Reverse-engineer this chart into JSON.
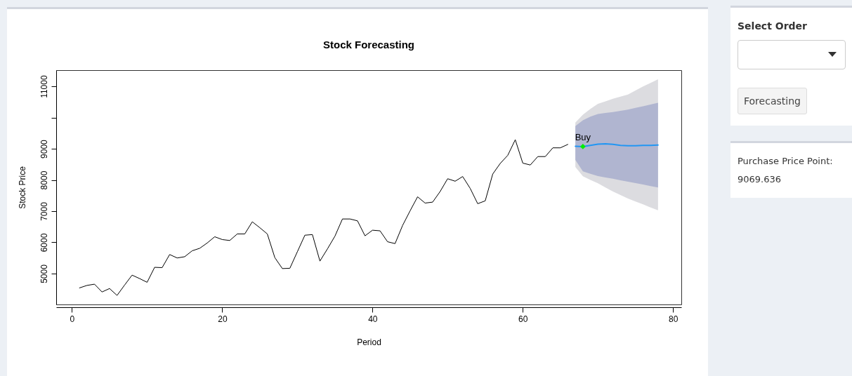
{
  "chart_data": {
    "type": "line",
    "title": "Stock Forecasting",
    "xlabel": "Period",
    "ylabel": "Stock Price",
    "xlim": [
      -2.1,
      81.1
    ],
    "xticks": [
      0,
      20,
      40,
      60,
      80
    ],
    "ylim": [
      4010,
      11520
    ],
    "yticks": [
      5000,
      6000,
      7000,
      8000,
      9000,
      {
        "value": 10000,
        "label": null
      },
      11000
    ],
    "grid": false,
    "series": [
      {
        "color": "#000000",
        "x": [
          1,
          2,
          3,
          4,
          5,
          6,
          7,
          8,
          9,
          10,
          11,
          12,
          13,
          14,
          15,
          16,
          17,
          18,
          19,
          20,
          21,
          22,
          23,
          24,
          25,
          26,
          27,
          28,
          29,
          30,
          31,
          32,
          33,
          34,
          35,
          36,
          37,
          38,
          39,
          40,
          41,
          42,
          43,
          44,
          45,
          46,
          47,
          48,
          49,
          50,
          51,
          52,
          53,
          54,
          55,
          56,
          57,
          58,
          59,
          60,
          61,
          62,
          63,
          64,
          65,
          66
        ],
        "values": [
          4540,
          4620,
          4660,
          4410,
          4520,
          4300,
          4630,
          4950,
          4840,
          4720,
          5200,
          5190,
          5610,
          5500,
          5540,
          5730,
          5810,
          5980,
          6180,
          6090,
          6060,
          6270,
          6270,
          6660,
          6470,
          6270,
          5510,
          5160,
          5170,
          5700,
          6230,
          6250,
          5400,
          5790,
          6200,
          6750,
          6750,
          6690,
          6210,
          6390,
          6370,
          6020,
          5960,
          6540,
          7010,
          7460,
          7260,
          7290,
          7630,
          8040,
          7960,
          8110,
          7730,
          7240,
          7330,
          8190,
          8530,
          8790,
          9290,
          8540,
          8480,
          8750,
          8750,
          9030,
          9030,
          9140
        ]
      },
      {
        "color": "#dcdce0",
        "x": [
          67,
          68,
          69,
          70,
          71,
          72,
          73,
          74,
          75,
          76,
          77,
          78
        ],
        "values": [
          null,
          null,
          null,
          null,
          null,
          null,
          null,
          null,
          null,
          null,
          null,
          null
        ],
        "lower": [
          8416,
          8117,
          8000,
          7893,
          7760,
          7629,
          7515,
          7404,
          7310,
          7218,
          7120,
          7029
        ],
        "upper": [
          9838,
          10090,
          10280,
          10438,
          10520,
          10602,
          10670,
          10737,
          10870,
          11000,
          11110,
          11225
        ]
      },
      {
        "color": "#b0b5d0",
        "x": [
          67,
          68,
          69,
          70,
          71,
          72,
          73,
          74,
          75,
          76,
          77,
          78
        ],
        "values": [
          null,
          null,
          null,
          null,
          null,
          null,
          null,
          null,
          null,
          null,
          null,
          null
        ],
        "lower": [
          8640,
          8276,
          8200,
          8127,
          8080,
          8041,
          7990,
          7944,
          7900,
          7854,
          7805,
          7757
        ],
        "upper": [
          9727,
          9915,
          10030,
          10117,
          10150,
          10175,
          10215,
          10258,
          10310,
          10364,
          10420,
          10476
        ]
      },
      {
        "color": "#2196f3",
        "x": [
          67,
          68,
          69,
          70,
          71,
          72,
          73,
          74,
          75,
          76,
          77,
          78
        ],
        "values": [
          9080,
          9070,
          9110,
          9150,
          9160,
          9140,
          9110,
          9100,
          9100,
          9110,
          9110,
          9120
        ]
      },
      {
        "type": "scatter",
        "marker": "diamond",
        "color": "#00ee00",
        "x": [
          68
        ],
        "values": [
          9070
        ]
      }
    ],
    "annotations": [
      {
        "text": "Buy",
        "x": 68,
        "y": 9070
      },
      "Select Order",
      "Forecasting",
      "Purchase Price Point:",
      "9069.636"
    ]
  }
}
